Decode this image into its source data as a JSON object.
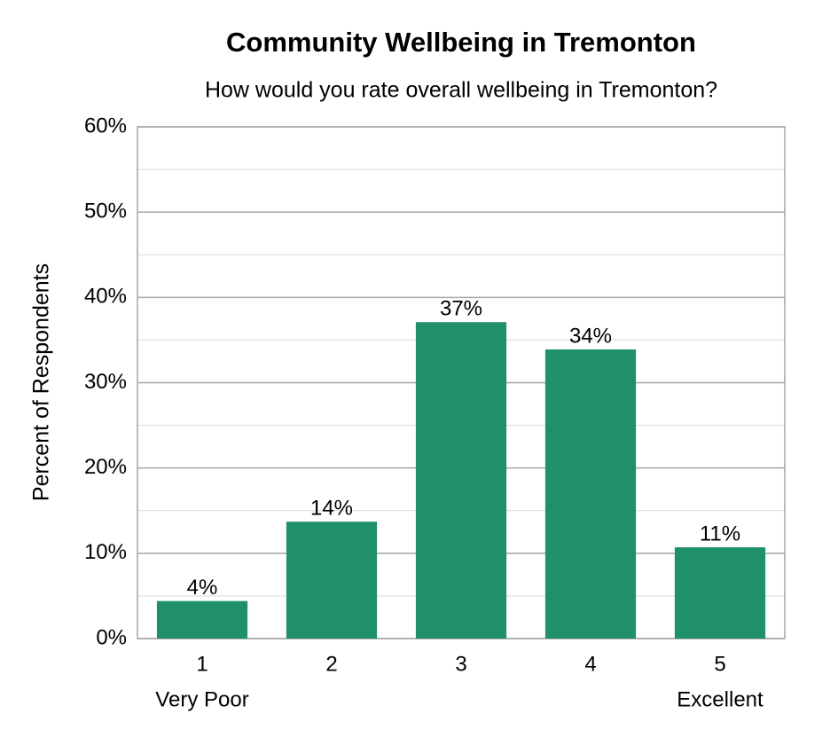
{
  "chart_data": {
    "type": "bar",
    "title": "Community Wellbeing in Tremonton",
    "subtitle": "How would you rate overall wellbeing in Tremonton?",
    "y_label": "Percent of Respondents",
    "categories": [
      "1",
      "2",
      "3",
      "4",
      "5"
    ],
    "category_sublabels": [
      "Very Poor",
      null,
      null,
      null,
      "Excellent"
    ],
    "values": [
      4.4,
      13.7,
      37.1,
      33.9,
      10.7
    ],
    "value_labels": [
      "4%",
      "14%",
      "37%",
      "34%",
      "11%"
    ],
    "color": "#1f9068",
    "ylim": [
      0,
      60
    ],
    "yticks": [
      {
        "value": 0,
        "label": "0%"
      },
      {
        "value": 10,
        "label": "10%"
      },
      {
        "value": 20,
        "label": "20%"
      },
      {
        "value": 30,
        "label": "30%"
      },
      {
        "value": 40,
        "label": "40%"
      },
      {
        "value": 50,
        "label": "50%"
      },
      {
        "value": 60,
        "label": "60%"
      }
    ],
    "minor_yticks": [
      5,
      15,
      25,
      35,
      45,
      55
    ],
    "grid": true
  }
}
